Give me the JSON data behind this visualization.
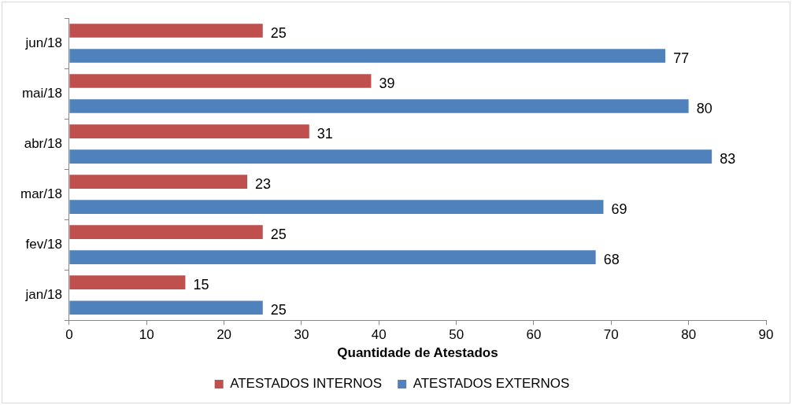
{
  "chart_data": {
    "type": "bar",
    "orientation": "horizontal",
    "xlabel": "Quantidade de Atestados",
    "categories": [
      "jun/18",
      "mai/18",
      "abr/18",
      "mar/18",
      "fev/18",
      "jan/18"
    ],
    "series": [
      {
        "name": "ATESTADOS INTERNOS",
        "color": "#c0504d",
        "values": [
          25,
          39,
          31,
          23,
          25,
          15
        ]
      },
      {
        "name": "ATESTADOS EXTERNOS",
        "color": "#4f81bd",
        "values": [
          77,
          80,
          83,
          69,
          68,
          25
        ]
      }
    ],
    "xlim": [
      0,
      90
    ],
    "xticks": [
      0,
      10,
      20,
      30,
      40,
      50,
      60,
      70,
      80,
      90
    ],
    "grid": false,
    "legend": "bottom",
    "data_labels": true
  }
}
